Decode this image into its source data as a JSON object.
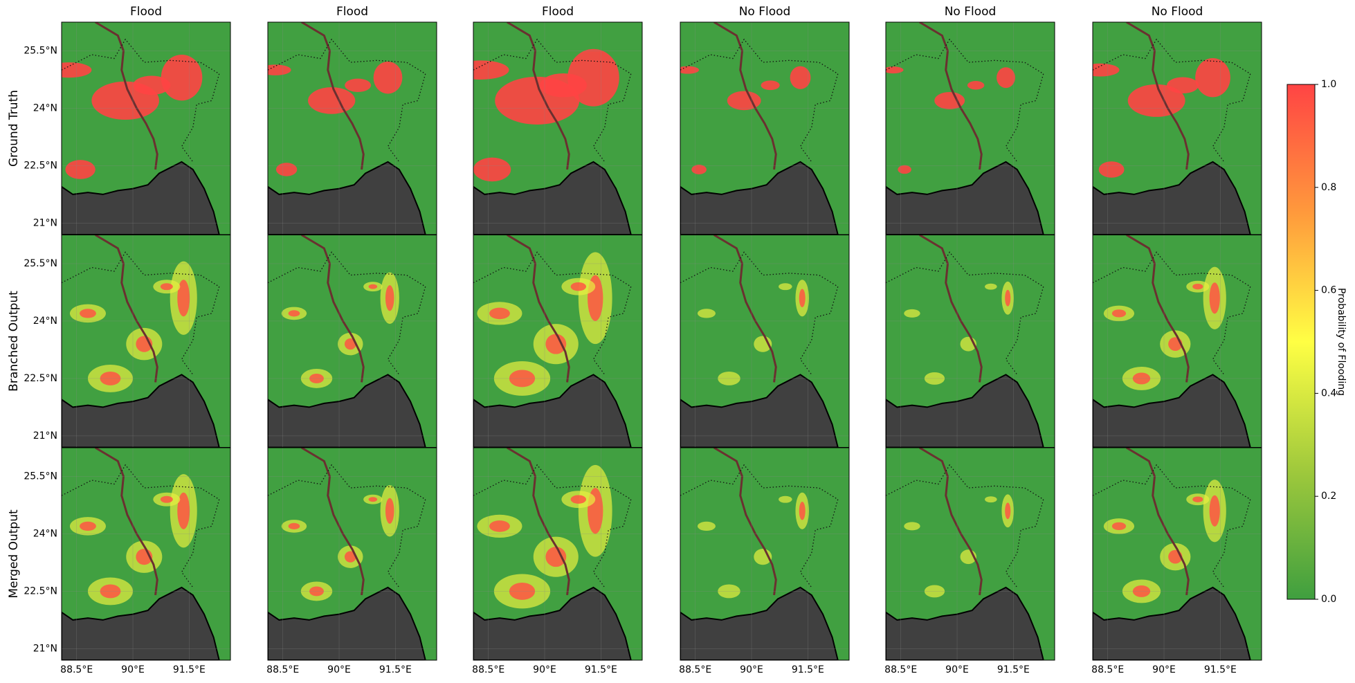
{
  "chart_data": {
    "type": "map-grid",
    "columns": [
      "Flood",
      "Flood",
      "Flood",
      "No Flood",
      "No Flood",
      "No Flood"
    ],
    "rows": [
      "Ground Truth",
      "Branched Output",
      "Merged Output"
    ],
    "xlim": [
      88.1,
      92.6
    ],
    "xticks": [
      {
        "value": 88.5,
        "label": "88.5°E"
      },
      {
        "value": 90,
        "label": "90°E"
      },
      {
        "value": 91.5,
        "label": "91.5°E"
      }
    ],
    "ylim": [
      20.7,
      26.25
    ],
    "yticks": [
      {
        "value": 25.5,
        "label": "25.5°N"
      },
      {
        "value": 24,
        "label": "24°N"
      },
      {
        "value": 22.5,
        "label": "22.5°N"
      },
      {
        "value": 21,
        "label": "21°N"
      }
    ],
    "colorbar": {
      "label": "Probability of Flooding",
      "lim": [
        0,
        1
      ],
      "ticks": [
        {
          "value": 0,
          "label": "0.0"
        },
        0.2,
        0.4,
        0.6,
        0.8,
        {
          "value": 1,
          "label": "1.0"
        }
      ],
      "colors": [
        "#3f9f3f",
        "#9fc93c",
        "#ffff44",
        "#ff9a3c",
        "#ff4444"
      ]
    }
  }
}
